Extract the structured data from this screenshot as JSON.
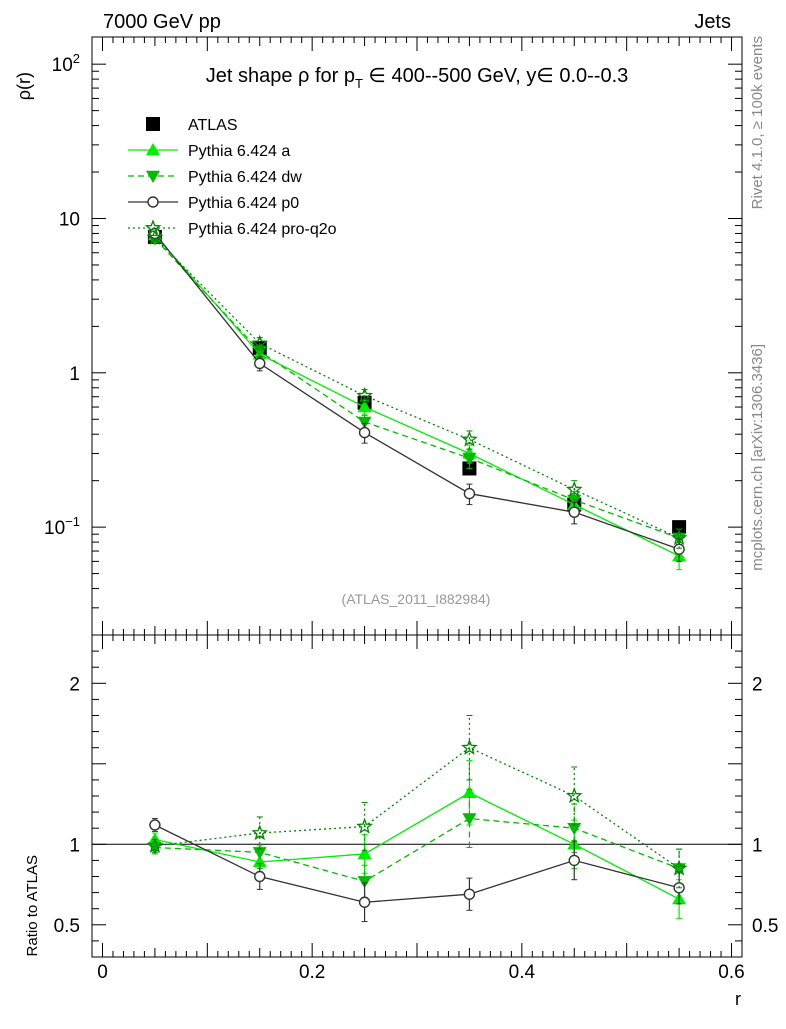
{
  "header": {
    "left": "7000 GeV pp",
    "right": "Jets"
  },
  "side_labels": {
    "top": "Rivet 4.1.0, ≥ 100k events",
    "bottom": "mcplots.cern.ch [arXiv:1306.3436]"
  },
  "watermark": "(ATLAS_2011_I882984)",
  "colors": {
    "atlas": "#000000",
    "pythia_a": "#00ee00",
    "pythia_dw": "#00bb00",
    "pythia_p0": "#333333",
    "pythia_proq2o": "#008800",
    "watermark": "#999999",
    "side_label": "#888888"
  },
  "chart_data": [
    {
      "id": "main",
      "type": "line",
      "title": "Jet shape ρ for p_T ∈ 400--500 GeV, y∈ 0.0--0.3",
      "title_parts": {
        "prefix": "Jet shape ρ for p",
        "sub": "T",
        "suffix": " ∈ 400--500 GeV, y∈ 0.0--0.3"
      },
      "ylabel": "ρ(r)",
      "xlabel": "r",
      "yscale": "log",
      "ylim": [
        0.02,
        150
      ],
      "xlim": [
        -0.01,
        0.61
      ],
      "yticks": [
        {
          "value": 0.1,
          "base": "10",
          "exp": "−1"
        },
        {
          "value": 1,
          "label": "1"
        },
        {
          "value": 10,
          "label": "10"
        },
        {
          "value": 100,
          "base": "10",
          "exp": "2"
        }
      ],
      "x": [
        0.05,
        0.15,
        0.25,
        0.35,
        0.45,
        0.55
      ],
      "series": [
        {
          "name": "ATLAS",
          "key": "atlas",
          "marker": "square",
          "line": "none",
          "values": [
            7.6,
            1.45,
            0.64,
            0.24,
            0.14,
            0.1
          ],
          "errors": [
            0.3,
            0.07,
            0.03,
            0.015,
            0.01,
            0.006
          ]
        },
        {
          "name": "Pythia 6.424 a",
          "key": "pythia_a",
          "marker": "triangle-up",
          "line": "solid",
          "values": [
            7.8,
            1.32,
            0.6,
            0.3,
            0.14,
            0.065
          ],
          "errors": [
            0.25,
            0.12,
            0.06,
            0.04,
            0.02,
            0.012
          ]
        },
        {
          "name": "Pythia 6.424 dw",
          "key": "pythia_dw",
          "marker": "triangle-down",
          "line": "dashed",
          "values": [
            7.4,
            1.38,
            0.48,
            0.28,
            0.15,
            0.085
          ],
          "errors": [
            0.25,
            0.13,
            0.05,
            0.04,
            0.02,
            0.012
          ]
        },
        {
          "name": "Pythia 6.424 p0",
          "key": "pythia_p0",
          "marker": "circle-open",
          "line": "solid",
          "values": [
            8.0,
            1.15,
            0.41,
            0.165,
            0.125,
            0.072
          ],
          "errors": [
            0.3,
            0.12,
            0.06,
            0.025,
            0.02,
            0.012
          ]
        },
        {
          "name": "Pythia 6.424 pro-q2o",
          "key": "pythia_proq2o",
          "marker": "star",
          "line": "dotted",
          "values": [
            7.5,
            1.55,
            0.71,
            0.37,
            0.175,
            0.085
          ],
          "errors": [
            0.25,
            0.14,
            0.07,
            0.05,
            0.025,
            0.012
          ]
        }
      ]
    },
    {
      "id": "ratio",
      "type": "line",
      "ylabel": "Ratio to ATLAS",
      "xlabel": "r",
      "ylim": [
        0.3,
        2.3
      ],
      "xlim": [
        -0.01,
        0.61
      ],
      "yticks": [
        0.5,
        1,
        1.5,
        2
      ],
      "ytick_labels": [
        "0.5",
        "1",
        "2"
      ],
      "xticks": [
        0,
        0.2,
        0.4,
        0.6
      ],
      "xtick_labels": [
        "0",
        "0.2",
        "0.4",
        "0.6"
      ],
      "x": [
        0.05,
        0.15,
        0.25,
        0.35,
        0.45,
        0.55
      ],
      "series": [
        {
          "name": "Pythia 6.424 a",
          "key": "pythia_a",
          "marker": "triangle-up",
          "line": "solid",
          "values": [
            1.03,
            0.89,
            0.94,
            1.32,
            1.0,
            0.66
          ],
          "errors": [
            0.04,
            0.1,
            0.12,
            0.2,
            0.15,
            0.12
          ]
        },
        {
          "name": "Pythia 6.424 dw",
          "key": "pythia_dw",
          "marker": "triangle-down",
          "line": "dashed",
          "values": [
            0.98,
            0.95,
            0.77,
            1.16,
            1.1,
            0.85
          ],
          "errors": [
            0.04,
            0.1,
            0.1,
            0.18,
            0.15,
            0.12
          ]
        },
        {
          "name": "Pythia 6.424 p0",
          "key": "pythia_p0",
          "marker": "circle-open",
          "line": "solid",
          "values": [
            1.12,
            0.8,
            0.64,
            0.69,
            0.9,
            0.73
          ],
          "errors": [
            0.04,
            0.08,
            0.12,
            0.1,
            0.12,
            0.1
          ]
        },
        {
          "name": "Pythia 6.424 pro-q2o",
          "key": "pythia_proq2o",
          "marker": "star",
          "line": "dotted",
          "values": [
            0.99,
            1.07,
            1.11,
            1.6,
            1.3,
            0.85
          ],
          "errors": [
            0.04,
            0.1,
            0.15,
            0.2,
            0.18,
            0.12
          ]
        }
      ]
    }
  ]
}
